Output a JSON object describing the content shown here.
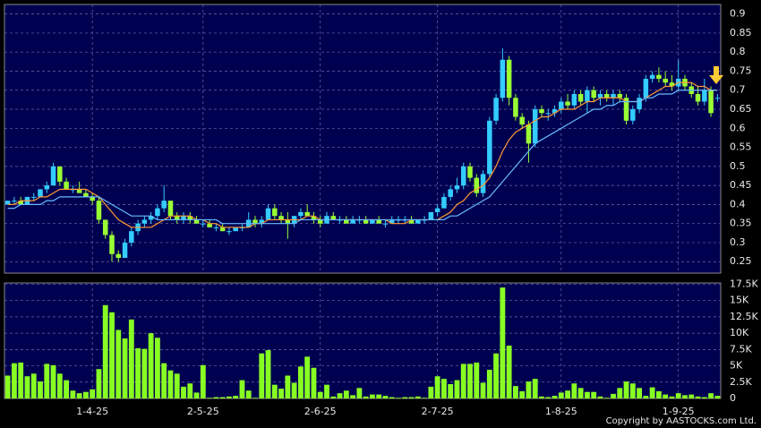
{
  "chart_data": {
    "type": "candlestick",
    "grid": true,
    "categories": [
      null,
      null,
      null,
      null,
      null,
      null,
      null,
      null,
      null,
      null,
      null,
      null,
      null,
      "1-4-25",
      null,
      null,
      null,
      null,
      null,
      null,
      null,
      null,
      null,
      null,
      null,
      null,
      null,
      null,
      null,
      null,
      "2-5-25",
      null,
      null,
      null,
      null,
      null,
      null,
      null,
      null,
      null,
      null,
      null,
      null,
      null,
      null,
      null,
      null,
      null,
      "2-6-25",
      null,
      null,
      null,
      null,
      null,
      null,
      null,
      null,
      null,
      null,
      null,
      null,
      null,
      null,
      null,
      null,
      null,
      "2-7-25",
      null,
      null,
      null,
      null,
      null,
      null,
      null,
      null,
      null,
      null,
      null,
      null,
      null,
      null,
      null,
      null,
      null,
      null,
      "1-8-25",
      null,
      null,
      null,
      null,
      null,
      null,
      null,
      null,
      null,
      null,
      null,
      null,
      null,
      null,
      null,
      null,
      null,
      "1-9-25",
      null,
      null,
      null,
      null,
      null,
      null
    ],
    "up_color": "#33ccff",
    "down_color": "#99ff33",
    "ohlc": [
      [
        0.4,
        0.41,
        0.4,
        0.41
      ],
      [
        0.41,
        0.42,
        0.4,
        0.41
      ],
      [
        0.41,
        0.42,
        0.4,
        0.4
      ],
      [
        0.4,
        0.42,
        0.4,
        0.42
      ],
      [
        0.42,
        0.43,
        0.41,
        0.42
      ],
      [
        0.42,
        0.44,
        0.42,
        0.44
      ],
      [
        0.44,
        0.46,
        0.43,
        0.45
      ],
      [
        0.45,
        0.51,
        0.45,
        0.5
      ],
      [
        0.5,
        0.5,
        0.45,
        0.46
      ],
      [
        0.46,
        0.47,
        0.44,
        0.44
      ],
      [
        0.44,
        0.45,
        0.43,
        0.44
      ],
      [
        0.44,
        0.46,
        0.43,
        0.43
      ],
      [
        0.43,
        0.44,
        0.42,
        0.42
      ],
      [
        0.42,
        0.43,
        0.4,
        0.41
      ],
      [
        0.41,
        0.42,
        0.35,
        0.36
      ],
      [
        0.36,
        0.36,
        0.31,
        0.32
      ],
      [
        0.32,
        0.33,
        0.25,
        0.27
      ],
      [
        0.27,
        0.28,
        0.25,
        0.26
      ],
      [
        0.26,
        0.31,
        0.26,
        0.3
      ],
      [
        0.3,
        0.34,
        0.29,
        0.33
      ],
      [
        0.33,
        0.36,
        0.32,
        0.35
      ],
      [
        0.35,
        0.37,
        0.34,
        0.36
      ],
      [
        0.36,
        0.38,
        0.35,
        0.37
      ],
      [
        0.37,
        0.4,
        0.36,
        0.39
      ],
      [
        0.39,
        0.45,
        0.38,
        0.41
      ],
      [
        0.41,
        0.41,
        0.36,
        0.37
      ],
      [
        0.37,
        0.38,
        0.35,
        0.36
      ],
      [
        0.36,
        0.38,
        0.35,
        0.37
      ],
      [
        0.37,
        0.38,
        0.35,
        0.36
      ],
      [
        0.36,
        0.37,
        0.35,
        0.35
      ],
      [
        0.35,
        0.36,
        0.34,
        0.35
      ],
      [
        0.35,
        0.36,
        0.34,
        0.34
      ],
      [
        0.34,
        0.35,
        0.33,
        0.34
      ],
      [
        0.34,
        0.35,
        0.33,
        0.33
      ],
      [
        0.33,
        0.34,
        0.32,
        0.33
      ],
      [
        0.33,
        0.34,
        0.33,
        0.34
      ],
      [
        0.34,
        0.35,
        0.33,
        0.34
      ],
      [
        0.34,
        0.38,
        0.34,
        0.36
      ],
      [
        0.36,
        0.37,
        0.34,
        0.35
      ],
      [
        0.35,
        0.37,
        0.34,
        0.36
      ],
      [
        0.36,
        0.4,
        0.36,
        0.39
      ],
      [
        0.39,
        0.4,
        0.36,
        0.37
      ],
      [
        0.37,
        0.38,
        0.35,
        0.36
      ],
      [
        0.36,
        0.38,
        0.31,
        0.35
      ],
      [
        0.35,
        0.37,
        0.34,
        0.37
      ],
      [
        0.37,
        0.39,
        0.36,
        0.38
      ],
      [
        0.38,
        0.4,
        0.37,
        0.37
      ],
      [
        0.37,
        0.38,
        0.35,
        0.36
      ],
      [
        0.36,
        0.37,
        0.34,
        0.35
      ],
      [
        0.35,
        0.38,
        0.35,
        0.37
      ],
      [
        0.37,
        0.38,
        0.36,
        0.36
      ],
      [
        0.36,
        0.37,
        0.35,
        0.36
      ],
      [
        0.36,
        0.37,
        0.35,
        0.35
      ],
      [
        0.35,
        0.37,
        0.35,
        0.36
      ],
      [
        0.36,
        0.37,
        0.35,
        0.36
      ],
      [
        0.36,
        0.37,
        0.35,
        0.35
      ],
      [
        0.35,
        0.36,
        0.35,
        0.36
      ],
      [
        0.36,
        0.37,
        0.35,
        0.35
      ],
      [
        0.35,
        0.36,
        0.34,
        0.35
      ],
      [
        0.35,
        0.37,
        0.35,
        0.36
      ],
      [
        0.36,
        0.37,
        0.35,
        0.36
      ],
      [
        0.36,
        0.37,
        0.35,
        0.36
      ],
      [
        0.36,
        0.37,
        0.35,
        0.35
      ],
      [
        0.35,
        0.36,
        0.35,
        0.36
      ],
      [
        0.36,
        0.37,
        0.35,
        0.36
      ],
      [
        0.36,
        0.38,
        0.36,
        0.38
      ],
      [
        0.38,
        0.4,
        0.37,
        0.39
      ],
      [
        0.39,
        0.43,
        0.39,
        0.42
      ],
      [
        0.42,
        0.45,
        0.41,
        0.44
      ],
      [
        0.44,
        0.47,
        0.43,
        0.45
      ],
      [
        0.45,
        0.51,
        0.44,
        0.5
      ],
      [
        0.5,
        0.51,
        0.46,
        0.47
      ],
      [
        0.47,
        0.48,
        0.42,
        0.43
      ],
      [
        0.43,
        0.49,
        0.42,
        0.48
      ],
      [
        0.48,
        0.63,
        0.47,
        0.62
      ],
      [
        0.62,
        0.69,
        0.61,
        0.68
      ],
      [
        0.68,
        0.81,
        0.67,
        0.78
      ],
      [
        0.78,
        0.79,
        0.66,
        0.68
      ],
      [
        0.68,
        0.69,
        0.62,
        0.63
      ],
      [
        0.63,
        0.64,
        0.6,
        0.61
      ],
      [
        0.61,
        0.62,
        0.51,
        0.56
      ],
      [
        0.56,
        0.66,
        0.55,
        0.65
      ],
      [
        0.65,
        0.66,
        0.63,
        0.64
      ],
      [
        0.64,
        0.65,
        0.62,
        0.64
      ],
      [
        0.64,
        0.66,
        0.63,
        0.65
      ],
      [
        0.65,
        0.68,
        0.64,
        0.67
      ],
      [
        0.67,
        0.69,
        0.65,
        0.66
      ],
      [
        0.66,
        0.7,
        0.65,
        0.69
      ],
      [
        0.69,
        0.7,
        0.66,
        0.67
      ],
      [
        0.67,
        0.71,
        0.64,
        0.7
      ],
      [
        0.7,
        0.71,
        0.67,
        0.68
      ],
      [
        0.68,
        0.7,
        0.66,
        0.69
      ],
      [
        0.69,
        0.7,
        0.67,
        0.68
      ],
      [
        0.68,
        0.7,
        0.66,
        0.69
      ],
      [
        0.69,
        0.7,
        0.67,
        0.68
      ],
      [
        0.68,
        0.69,
        0.61,
        0.62
      ],
      [
        0.62,
        0.66,
        0.61,
        0.65
      ],
      [
        0.65,
        0.69,
        0.64,
        0.68
      ],
      [
        0.68,
        0.74,
        0.67,
        0.73
      ],
      [
        0.73,
        0.75,
        0.72,
        0.74
      ],
      [
        0.74,
        0.76,
        0.72,
        0.73
      ],
      [
        0.73,
        0.75,
        0.71,
        0.72
      ],
      [
        0.72,
        0.74,
        0.7,
        0.71
      ],
      [
        0.71,
        0.78,
        0.7,
        0.73
      ],
      [
        0.73,
        0.74,
        0.7,
        0.71
      ],
      [
        0.71,
        0.72,
        0.68,
        0.69
      ],
      [
        0.69,
        0.71,
        0.66,
        0.67
      ],
      [
        0.67,
        0.73,
        0.66,
        0.7
      ],
      [
        0.7,
        0.71,
        0.63,
        0.64
      ],
      [
        0.68,
        0.69,
        0.67,
        0.68
      ]
    ],
    "series": [
      {
        "color": "#ff9933",
        "values": [
          0.4,
          0.4,
          0.41,
          0.41,
          0.41,
          0.42,
          0.42,
          0.43,
          0.44,
          0.44,
          0.44,
          0.44,
          0.44,
          0.43,
          0.42,
          0.4,
          0.38,
          0.36,
          0.35,
          0.34,
          0.34,
          0.34,
          0.34,
          0.35,
          0.36,
          0.37,
          0.37,
          0.37,
          0.37,
          0.36,
          0.36,
          0.35,
          0.35,
          0.34,
          0.34,
          0.34,
          0.34,
          0.34,
          0.35,
          0.35,
          0.36,
          0.36,
          0.36,
          0.36,
          0.36,
          0.36,
          0.37,
          0.37,
          0.36,
          0.36,
          0.36,
          0.36,
          0.36,
          0.36,
          0.36,
          0.36,
          0.36,
          0.36,
          0.36,
          0.35,
          0.35,
          0.35,
          0.36,
          0.36,
          0.36,
          0.36,
          0.36,
          0.37,
          0.38,
          0.4,
          0.41,
          0.43,
          0.44,
          0.45,
          0.47,
          0.5,
          0.54,
          0.57,
          0.59,
          0.6,
          0.61,
          0.62,
          0.63,
          0.63,
          0.64,
          0.65,
          0.65,
          0.65,
          0.66,
          0.67,
          0.67,
          0.68,
          0.68,
          0.68,
          0.68,
          0.67,
          0.67,
          0.67,
          0.68,
          0.69,
          0.7,
          0.71,
          0.71,
          0.72,
          0.72,
          0.72,
          0.71,
          0.71,
          0.7,
          0.7
        ]
      },
      {
        "color": "#66bbff",
        "values": [
          0.39,
          0.39,
          0.4,
          0.4,
          0.4,
          0.4,
          0.41,
          0.41,
          0.42,
          0.42,
          0.42,
          0.42,
          0.42,
          0.42,
          0.42,
          0.41,
          0.4,
          0.39,
          0.38,
          0.37,
          0.37,
          0.37,
          0.37,
          0.36,
          0.36,
          0.36,
          0.36,
          0.36,
          0.36,
          0.36,
          0.36,
          0.36,
          0.36,
          0.35,
          0.35,
          0.35,
          0.35,
          0.35,
          0.35,
          0.35,
          0.35,
          0.35,
          0.35,
          0.35,
          0.35,
          0.36,
          0.36,
          0.36,
          0.36,
          0.36,
          0.36,
          0.36,
          0.36,
          0.36,
          0.36,
          0.36,
          0.36,
          0.36,
          0.36,
          0.36,
          0.36,
          0.36,
          0.36,
          0.36,
          0.36,
          0.36,
          0.36,
          0.36,
          0.37,
          0.37,
          0.38,
          0.39,
          0.4,
          0.41,
          0.42,
          0.44,
          0.46,
          0.48,
          0.5,
          0.52,
          0.54,
          0.56,
          0.57,
          0.58,
          0.59,
          0.6,
          0.61,
          0.62,
          0.63,
          0.64,
          0.65,
          0.65,
          0.66,
          0.66,
          0.67,
          0.67,
          0.67,
          0.67,
          0.68,
          0.68,
          0.69,
          0.69,
          0.69,
          0.7,
          0.7,
          0.7,
          0.7,
          0.7,
          0.7,
          0.7
        ]
      }
    ],
    "ylim": [
      0.22,
      0.925
    ],
    "yticks": [
      0.25,
      0.3,
      0.35,
      0.4,
      0.45,
      0.5,
      0.55,
      0.6,
      0.65,
      0.7,
      0.75,
      0.8,
      0.85,
      0.9
    ],
    "volume": {
      "color": "#88ff22",
      "values": [
        3500,
        5400,
        5500,
        3400,
        3800,
        2600,
        5300,
        5100,
        3800,
        2800,
        1200,
        800,
        1000,
        1400,
        4500,
        14300,
        13200,
        10500,
        9200,
        12100,
        7700,
        7600,
        10000,
        9300,
        5400,
        4300,
        3800,
        1800,
        2300,
        900,
        5100,
        100,
        200,
        200,
        300,
        400,
        2800,
        1200,
        100,
        6900,
        7400,
        2100,
        1500,
        3500,
        2400,
        4900,
        6400,
        4700,
        1000,
        2100,
        300,
        800,
        1200,
        500,
        1600,
        300,
        600,
        600,
        400,
        200,
        100,
        200,
        200,
        300,
        100,
        1800,
        3400,
        3000,
        2200,
        2800,
        5300,
        5300,
        5500,
        2400,
        4400,
        6900,
        17000,
        8100,
        1900,
        1100,
        2600,
        3000,
        300,
        200,
        400,
        900,
        1200,
        2300,
        1600,
        1000,
        1000,
        300,
        100,
        700,
        1600,
        2600,
        2300,
        1600,
        400,
        1700,
        1100,
        600,
        300,
        800,
        500,
        600,
        300,
        200,
        800,
        400
      ],
      "ylim": [
        0,
        17700
      ],
      "yticks": [
        0,
        {
          "value": 2500,
          "label": "2.5K"
        },
        {
          "value": 5000,
          "label": "5K"
        },
        {
          "value": 7500,
          "label": "7.5K"
        },
        {
          "value": 10000,
          "label": "10K"
        },
        {
          "value": 12500,
          "label": "12.5K"
        },
        {
          "value": 15000,
          "label": "15K"
        },
        {
          "value": 17500,
          "label": "17.5K"
        }
      ]
    },
    "copyright": "Copyright by AASTOCKS.com Ltd."
  }
}
